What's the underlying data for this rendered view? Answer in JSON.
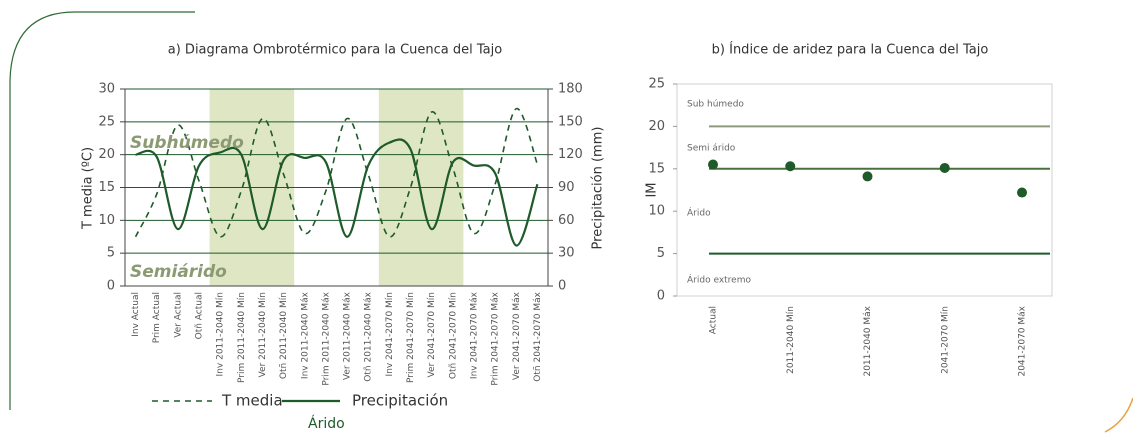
{
  "chart_data": [
    {
      "type": "line",
      "title": "a) Diagrama Ombrotérmico para la Cuenca del Tajo",
      "categories": [
        "Inv Actual",
        "Prim Actual",
        "Ver Actual",
        "Otñ Actual",
        "Inv 2011-2040 Mín",
        "Prim 2011-2040 Mín",
        "Ver 2011-2040 Mín",
        "Otñ 2011-2040 Mín",
        "Inv 2011-2040 Máx",
        "Prim 2011-2040 Máx",
        "Ver 2011-2040 Máx",
        "Otñ 2011-2040 Máx",
        "Inv 2041-2070 Mín",
        "Prim 2041-2070 Mín",
        "Ver 2041-2070 Mín",
        "Otñ 2041-2070 Mín",
        "Inv 2041-2070 Máx",
        "Prim 2041-2070 Máx",
        "Ver 2041-2070 Máx",
        "Otñ 2041-2070 Máx"
      ],
      "series": [
        {
          "name": "T media",
          "color": "#1e5a2a",
          "dashed": true,
          "values": [
            7.5,
            14,
            24.5,
            16,
            7.5,
            14.5,
            25.5,
            17,
            8,
            14.5,
            25.5,
            17,
            7.5,
            15,
            26.5,
            18,
            8,
            15.5,
            27,
            18.5
          ]
        },
        {
          "name": "Precipitación",
          "color": "#1e5a2a",
          "dashed": false,
          "axis": "y2",
          "values": [
            120,
            118,
            52,
            110,
            122,
            120,
            52,
            115,
            117,
            113,
            45,
            110,
            131,
            125,
            52,
            113,
            110,
            103,
            37,
            93
          ]
        }
      ],
      "ylabel": "T media (ºC)",
      "y2label": "Precipitación (mm)",
      "ylim": [
        0,
        30
      ],
      "yticks": [
        0,
        5,
        10,
        15,
        20,
        25,
        30
      ],
      "y2lim": [
        0,
        180
      ],
      "y2ticks": [
        0,
        30,
        60,
        90,
        120,
        150,
        180
      ],
      "grid": true,
      "shaded": [
        {
          "from": "Inv 2011-2040 Mín",
          "to": "Otñ 2011-2040 Mín"
        },
        {
          "from": "Inv 2041-2070 Mín",
          "to": "Otñ 2041-2070 Mín"
        }
      ],
      "shade_color": "#dfe6c4",
      "annotations": [
        "Subhúmedo",
        "Semiárido",
        "Árido"
      ]
    },
    {
      "type": "scatter",
      "title": "b) Índice de aridez para la Cuenca del Tajo",
      "categories": [
        "Actual",
        "2011-2040 Mín",
        "2011-2040 Máx",
        "2041-2070 Mín",
        "2041-2070 Máx"
      ],
      "values": [
        15.5,
        15.3,
        14.1,
        15.1,
        12.2
      ],
      "color": "#1e5a2a",
      "ylabel": "IM",
      "ylim": [
        0,
        25
      ],
      "yticks": [
        0,
        5,
        10,
        15,
        20,
        25
      ],
      "thresholds": [
        {
          "value": 20,
          "color": "#8e9a7c"
        },
        {
          "value": 15,
          "color": "#4a7040"
        },
        {
          "value": 5,
          "color": "#1e5a2a"
        }
      ],
      "zones": [
        "Sub húmedo",
        "Semi árido",
        "Árido",
        "Árido extremo"
      ]
    }
  ]
}
